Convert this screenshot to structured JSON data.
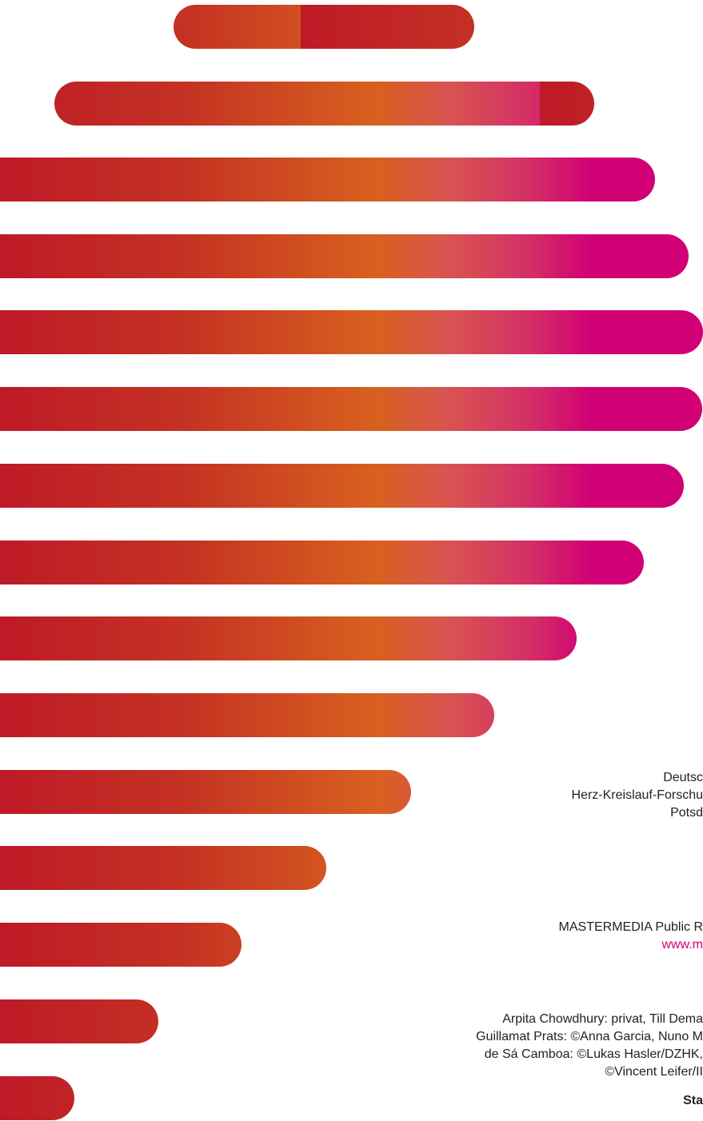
{
  "colors": {
    "bar_start": "#be1a27",
    "bar_mid": "#d8601f",
    "bar_end": "#d10075",
    "link": "#d10075"
  },
  "address": {
    "line1": "Deutsc",
    "line2": "Herz-Kreislauf-Forschu",
    "line3": "Potsd"
  },
  "publisher": {
    "name": "MASTERMEDIA Public R",
    "url": "www.m"
  },
  "photo_credits": {
    "line1": "Arpita Chowdhury: privat, Till Dema",
    "line2": "Guillamat Prats: ©Anna Garcia, Nuno M",
    "line3": "de Sá Camboa: ©Lukas Hasler/DZHK,",
    "line4": "©Vincent Leifer/II"
  },
  "footer": {
    "label": "Sta"
  }
}
